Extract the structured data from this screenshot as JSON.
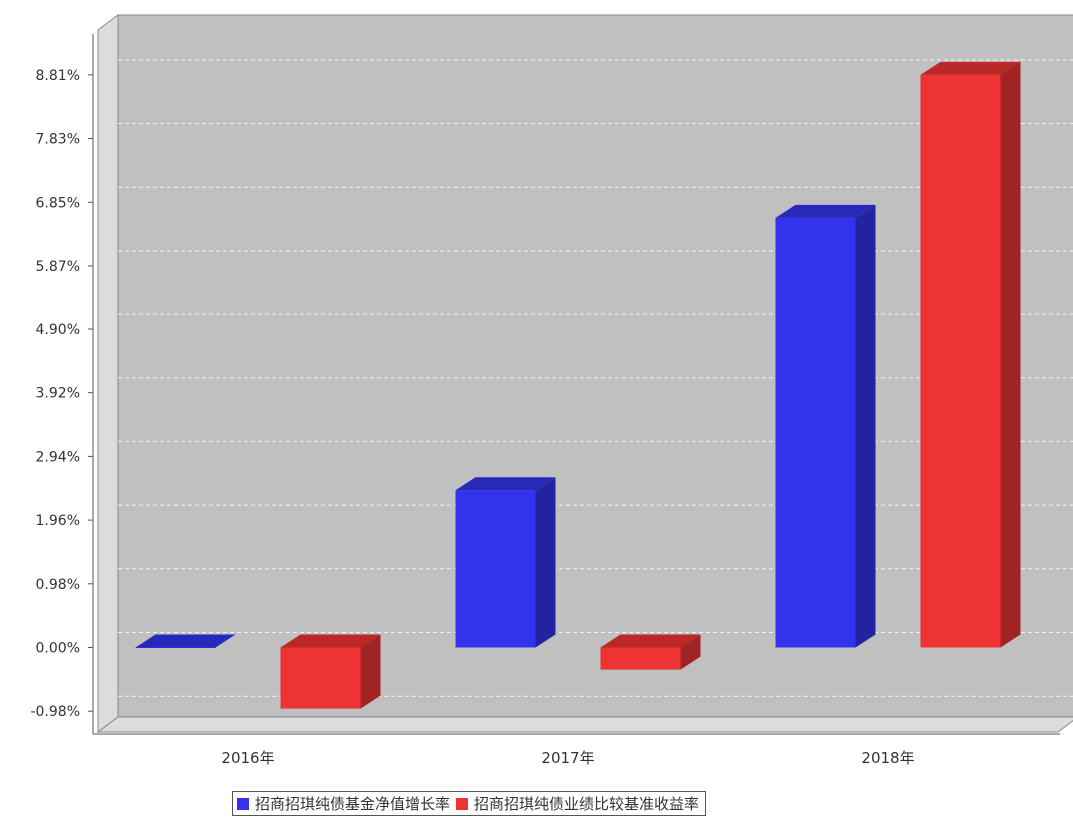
{
  "chart_data": {
    "type": "bar",
    "categories": [
      "2016年",
      "2017年",
      "2018年"
    ],
    "series": [
      {
        "name": "招商招琪纯债基金净值增长率",
        "color": "#3333ee",
        "values": [
          0.0,
          2.42,
          6.61
        ]
      },
      {
        "name": "招商招琪纯债业绩比较基准收益率",
        "color": "#ee3333",
        "values": [
          -0.94,
          -0.34,
          8.81
        ]
      }
    ],
    "yticks": [
      "-0.98%",
      "0.00%",
      "0.98%",
      "1.96%",
      "2.94%",
      "3.92%",
      "4.90%",
      "5.87%",
      "6.85%",
      "7.83%",
      "8.81%"
    ],
    "ylim": [
      -1.3,
      9.5
    ],
    "grid": true,
    "legend_position": "bottom",
    "background": "#c0c0c0"
  }
}
